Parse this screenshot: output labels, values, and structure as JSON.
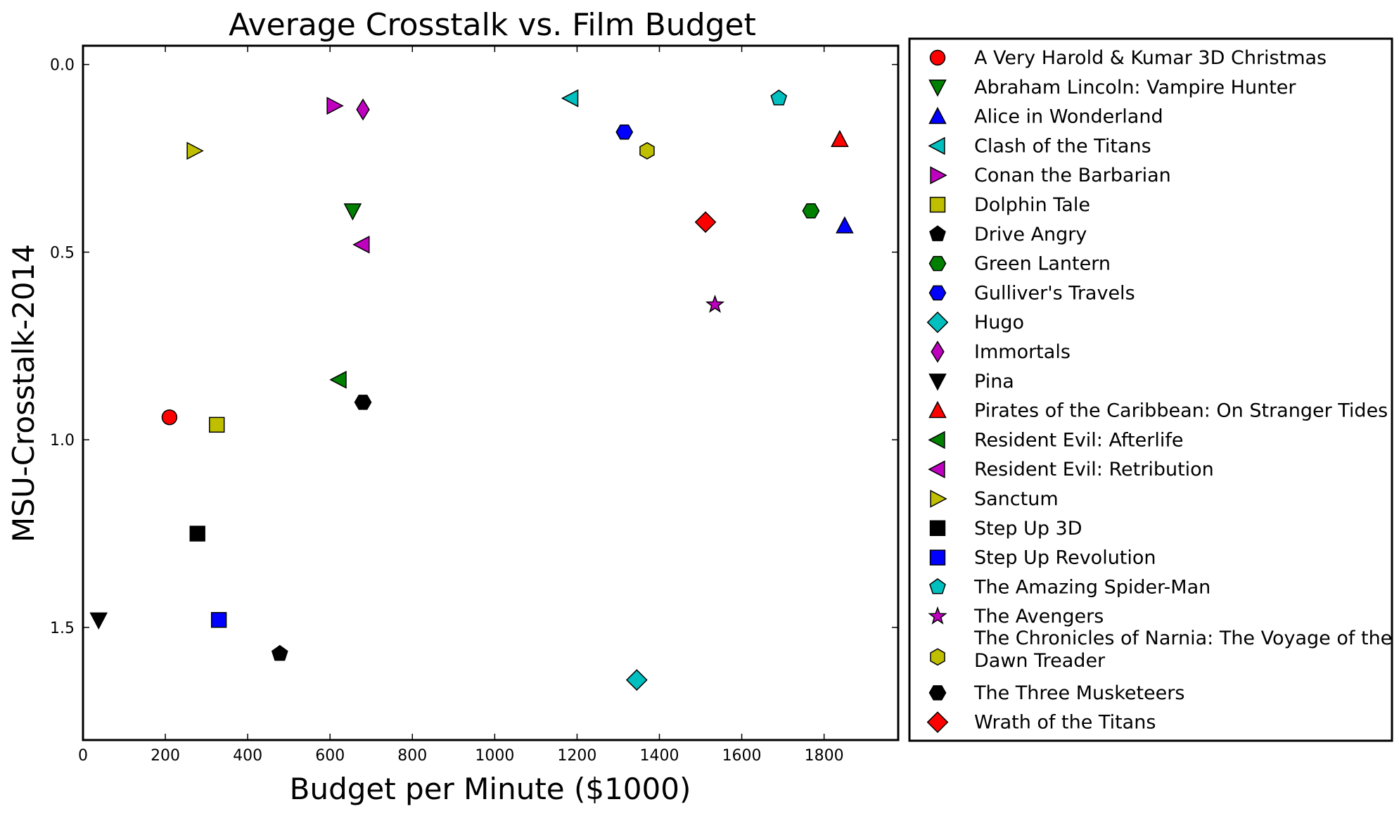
{
  "chart_data": {
    "type": "scatter",
    "title": "Average Crosstalk vs. Film Budget",
    "xlabel": "Budget per Minute ($1000)",
    "ylabel": "MSU-Crosstalk-2014",
    "xlim": [
      0,
      1980
    ],
    "ylim": [
      1.8,
      -0.05
    ],
    "y_inverted": true,
    "xticks": [
      0,
      200,
      400,
      600,
      800,
      1000,
      1200,
      1400,
      1600,
      1800
    ],
    "yticks": [
      0.0,
      0.5,
      1.0,
      1.5
    ],
    "ytick_labels": [
      "0.0",
      "0.5",
      "1.0",
      "1.5"
    ],
    "grid": false,
    "legend_placement": "outside-right",
    "series": [
      {
        "name": "A Very Harold & Kumar 3D Christmas",
        "marker": "circle",
        "color": "#ff0000",
        "x": [
          210
        ],
        "y": [
          0.94
        ]
      },
      {
        "name": "Abraham Lincoln: Vampire Hunter",
        "marker": "triangle-down",
        "color": "#008000",
        "x": [
          655
        ],
        "y": [
          0.39
        ]
      },
      {
        "name": "Alice in Wonderland",
        "marker": "triangle-up",
        "color": "#0000ff",
        "x": [
          1850
        ],
        "y": [
          0.43
        ]
      },
      {
        "name": "Clash of the Titans",
        "marker": "triangle-left",
        "color": "#00bfbf",
        "x": [
          1185
        ],
        "y": [
          0.09
        ]
      },
      {
        "name": "Conan the Barbarian",
        "marker": "triangle-right",
        "color": "#bf00bf",
        "x": [
          610
        ],
        "y": [
          0.11
        ]
      },
      {
        "name": "Dolphin Tale",
        "marker": "square",
        "color": "#bfbf00",
        "x": [
          325
        ],
        "y": [
          0.96
        ]
      },
      {
        "name": "Drive Angry",
        "marker": "pentagon",
        "color": "#000000",
        "x": [
          478
        ],
        "y": [
          1.57
        ]
      },
      {
        "name": "Green Lantern",
        "marker": "hexagon-flat",
        "color": "#008000",
        "x": [
          1768
        ],
        "y": [
          0.39
        ]
      },
      {
        "name": "Gulliver's Travels",
        "marker": "hexagon-flat",
        "color": "#0000ff",
        "x": [
          1315
        ],
        "y": [
          0.18
        ]
      },
      {
        "name": "Hugo",
        "marker": "diamond",
        "color": "#00bfbf",
        "x": [
          1345
        ],
        "y": [
          1.64
        ]
      },
      {
        "name": "Immortals",
        "marker": "thin-diamond",
        "color": "#bf00bf",
        "x": [
          680
        ],
        "y": [
          0.12
        ]
      },
      {
        "name": "Pina",
        "marker": "triangle-down",
        "color": "#000000",
        "x": [
          38
        ],
        "y": [
          1.48
        ]
      },
      {
        "name": "Pirates of the Caribbean: On Stranger Tides",
        "marker": "triangle-up",
        "color": "#ff0000",
        "x": [
          1838
        ],
        "y": [
          0.2
        ]
      },
      {
        "name": "Resident Evil: Afterlife",
        "marker": "triangle-left",
        "color": "#008000",
        "x": [
          622
        ],
        "y": [
          0.84
        ]
      },
      {
        "name": "Resident Evil: Retribution",
        "marker": "triangle-left",
        "color": "#bf00bf",
        "x": [
          678
        ],
        "y": [
          0.48
        ]
      },
      {
        "name": "Sanctum",
        "marker": "triangle-right",
        "color": "#bfbf00",
        "x": [
          270
        ],
        "y": [
          0.23
        ]
      },
      {
        "name": "Step Up 3D",
        "marker": "square",
        "color": "#000000",
        "x": [
          278
        ],
        "y": [
          1.25
        ]
      },
      {
        "name": "Step Up Revolution",
        "marker": "square",
        "color": "#0000ff",
        "x": [
          330
        ],
        "y": [
          1.48
        ]
      },
      {
        "name": "The Amazing Spider-Man",
        "marker": "pentagon",
        "color": "#00bfbf",
        "x": [
          1690
        ],
        "y": [
          0.09
        ]
      },
      {
        "name": "The Avengers",
        "marker": "star",
        "color": "#bf00bf",
        "x": [
          1535
        ],
        "y": [
          0.64
        ]
      },
      {
        "name": "The Chronicles of Narnia: The Voyage of the Dawn Treader",
        "marker": "hexagon",
        "color": "#bfbf00",
        "x": [
          1370
        ],
        "y": [
          0.23
        ]
      },
      {
        "name": "The Three Musketeers",
        "marker": "hexagon-flat",
        "color": "#000000",
        "x": [
          680
        ],
        "y": [
          0.9
        ]
      },
      {
        "name": "Wrath of the Titans",
        "marker": "diamond",
        "color": "#ff0000",
        "x": [
          1512
        ],
        "y": [
          0.42
        ]
      }
    ]
  }
}
